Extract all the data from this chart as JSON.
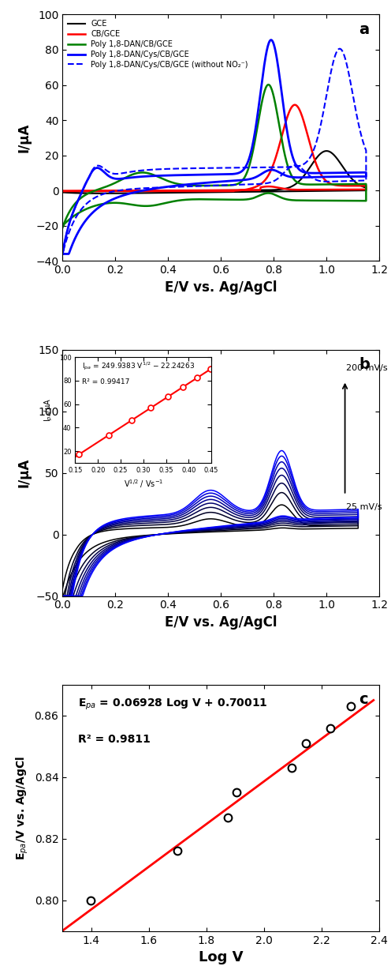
{
  "panel_a": {
    "title_label": "a",
    "xlabel": "E/V vs. Ag/AgCl",
    "ylabel": "I/μA",
    "xlim": [
      0.0,
      1.2
    ],
    "ylim": [
      -40,
      100
    ],
    "yticks": [
      -40,
      -20,
      0,
      20,
      40,
      60,
      80,
      100
    ],
    "xticks": [
      0.0,
      0.2,
      0.4,
      0.6,
      0.8,
      1.0,
      1.2
    ]
  },
  "panel_b": {
    "title_label": "b",
    "xlabel": "E/V vs. Ag/AgCl",
    "ylabel": "I/μA",
    "xlim": [
      0.0,
      1.2
    ],
    "ylim": [
      -50,
      150
    ],
    "yticks": [
      -50,
      0,
      50,
      100,
      150
    ],
    "xticks": [
      0.0,
      0.2,
      0.4,
      0.6,
      0.8,
      1.0,
      1.2
    ],
    "inset": {
      "xlabel": "V^{1/2} / Vs^{-1}",
      "ylabel": "I_{pa}/μA",
      "equation": "I$_{pa}$ = 249.9383 V$^{1/2}$ − 22.24263",
      "r2": "R² = 0.99417",
      "xlim": [
        0.15,
        0.45
      ],
      "ylim": [
        10,
        100
      ],
      "xticks": [
        0.15,
        0.2,
        0.25,
        0.3,
        0.35,
        0.4,
        0.45
      ],
      "yticks": [
        20,
        40,
        60,
        80,
        100
      ],
      "x_data": [
        0.1581,
        0.2236,
        0.2739,
        0.3162,
        0.3536,
        0.3873,
        0.4183,
        0.4472
      ],
      "y_data": [
        17.3,
        33.7,
        46.3,
        57.0,
        66.3,
        74.8,
        82.5,
        89.8
      ],
      "slope": 249.9383,
      "intercept": -22.24263
    }
  },
  "panel_c": {
    "title_label": "c",
    "xlabel": "Log V",
    "ylabel": "E$_{pa}$/V vs. Ag/AgCl",
    "xlim": [
      1.3,
      2.4
    ],
    "ylim": [
      0.79,
      0.87
    ],
    "xticks": [
      1.4,
      1.6,
      1.8,
      2.0,
      2.2,
      2.4
    ],
    "yticks": [
      0.8,
      0.82,
      0.84,
      0.86
    ],
    "equation": "E$_{pa}$ = 0.06928 Log V + 0.70011",
    "r2": "R² = 0.9811",
    "x_data": [
      1.398,
      1.699,
      1.875,
      1.903,
      2.097,
      2.146,
      2.23,
      2.301
    ],
    "y_data": [
      0.8,
      0.816,
      0.827,
      0.835,
      0.843,
      0.851,
      0.856,
      0.863
    ],
    "fit_x": [
      1.3,
      2.38
    ],
    "fit_slope": 0.06928,
    "fit_intercept": 0.70011
  }
}
